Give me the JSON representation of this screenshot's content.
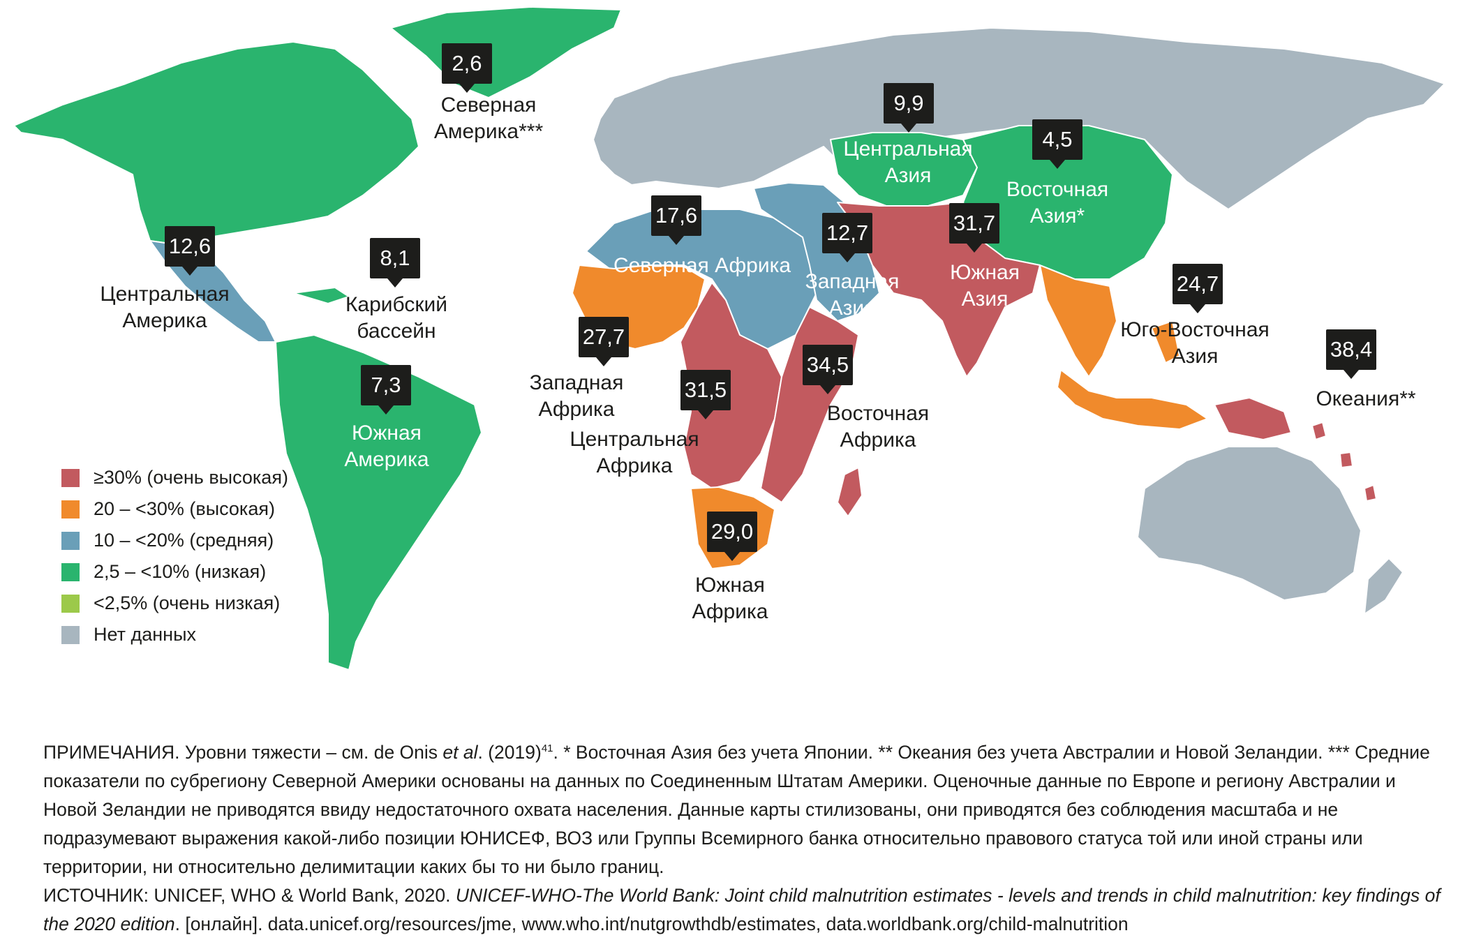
{
  "colors": {
    "very_high": "#c25a5f",
    "high": "#f08a2c",
    "medium": "#6a9fb8",
    "low": "#2ab46e",
    "very_low": "#9cc94a",
    "no_data": "#a8b6bf"
  },
  "legend": [
    {
      "label": "≥30% (очень высокая)",
      "color": "#c25a5f"
    },
    {
      "label": "20 – <30% (высокая)",
      "color": "#f08a2c"
    },
    {
      "label": "10 – <20% (средняя)",
      "color": "#6a9fb8"
    },
    {
      "label": "2,5 – <10% (низкая)",
      "color": "#2ab46e"
    },
    {
      "label": "<2,5% (очень низкая)",
      "color": "#9cc94a"
    },
    {
      "label": "Нет данных",
      "color": "#a8b6bf"
    }
  ],
  "regions": {
    "north_america": {
      "value": "2,6",
      "name_line1": "Северная",
      "name_line2": "Америка***"
    },
    "central_america": {
      "value": "12,6",
      "name_line1": "Центральная",
      "name_line2": "Америка"
    },
    "caribbean": {
      "value": "8,1",
      "name_line1": "Карибский",
      "name_line2": "бассейн"
    },
    "south_america": {
      "value": "7,3",
      "name_line1": "Южная",
      "name_line2": "Америка"
    },
    "north_africa": {
      "value": "17,6",
      "name": "Северная Африка"
    },
    "west_africa": {
      "value": "27,7",
      "name_line1": "Западная",
      "name_line2": "Африка"
    },
    "central_africa": {
      "value": "31,5",
      "name_line1": "Центральная",
      "name_line2": "Африка"
    },
    "east_africa": {
      "value": "34,5",
      "name_line1": "Восточная",
      "name_line2": "Африка"
    },
    "southern_africa": {
      "value": "29,0",
      "name_line1": "Южная",
      "name_line2": "Африка"
    },
    "west_asia": {
      "value": "12,7",
      "name_line1": "Западная",
      "name_line2": "Азия"
    },
    "central_asia": {
      "value": "9,9",
      "name_line1": "Центральная",
      "name_line2": "Азия"
    },
    "east_asia": {
      "value": "4,5",
      "name_line1": "Восточная",
      "name_line2": "Азия*"
    },
    "south_asia": {
      "value": "31,7",
      "name_line1": "Южная",
      "name_line2": "Азия"
    },
    "southeast_asia": {
      "value": "24,7",
      "name_line1": "Юго-Восточная",
      "name_line2": "Азия"
    },
    "oceania": {
      "value": "38,4",
      "name": "Океания**"
    }
  },
  "notes": {
    "p1_a": "ПРИМЕЧАНИЯ. Уровни тяжести – см. de Onis ",
    "p1_etal": "et al",
    "p1_b": ". (2019)",
    "p1_sup": "41",
    "p1_c": ". * Восточная Азия без учета Японии. ** Океания без учета Австралии и Новой Зеландии. *** Средние показатели по субрегиону Северной Америки основаны на данных по Соединенным Штатам Америки. Оценочные данные по Европе и региону Австралии и Новой Зеландии не приводятся ввиду недостаточного охвата населения. Данные карты стилизованы, они приводятся без соблюдения масштаба и не подразумевают выражения какой-либо позиции ЮНИСЕФ, ВОЗ или Группы Всемирного банка относительно правового статуса той или иной страны или территории, ни относительно делимитации каких бы то ни было границ.",
    "p2_a": "ИСТОЧНИК: UNICEF, WHO & World Bank, 2020. ",
    "p2_title": "UNICEF-WHO-The World Bank: Joint child malnutrition estimates - levels and trends in child malnutrition: key findings of the 2020 edition",
    "p2_b": ". [онлайн]. data.unicef.org/resources/jme, www.who.int/nutgrowthdb/estimates, data.worldbank.org/child-malnutrition"
  }
}
